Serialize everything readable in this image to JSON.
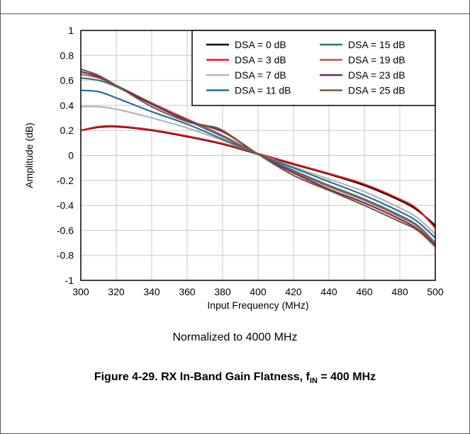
{
  "chart_data": {
    "type": "line",
    "xlabel": "Input Frequency (MHz)",
    "ylabel": "Amplitude (dB)",
    "xlim": [
      300,
      500
    ],
    "ylim": [
      -1,
      1
    ],
    "x_ticks": [
      "300",
      "320",
      "340",
      "360",
      "380",
      "400",
      "420",
      "440",
      "460",
      "480",
      "500"
    ],
    "y_ticks": [
      "1",
      "0.8",
      "0.6",
      "0.4",
      "0.2",
      "0",
      "-0.2",
      "-0.4",
      "-0.6",
      "-0.8",
      "-1"
    ],
    "grid": true,
    "legend_position": "top-right",
    "series": [
      {
        "name": "DSA = 0 dB",
        "color": "#000000",
        "points": [
          [
            300,
            0.2
          ],
          [
            310,
            0.225
          ],
          [
            320,
            0.23
          ],
          [
            340,
            0.2
          ],
          [
            360,
            0.15
          ],
          [
            380,
            0.09
          ],
          [
            400,
            0.01
          ],
          [
            420,
            -0.07
          ],
          [
            440,
            -0.15
          ],
          [
            460,
            -0.24
          ],
          [
            480,
            -0.36
          ],
          [
            490,
            -0.44
          ],
          [
            500,
            -0.56
          ]
        ]
      },
      {
        "name": "DSA = 3 dB",
        "color": "#e8191c",
        "points": [
          [
            300,
            0.2
          ],
          [
            310,
            0.23
          ],
          [
            320,
            0.235
          ],
          [
            340,
            0.205
          ],
          [
            360,
            0.155
          ],
          [
            380,
            0.095
          ],
          [
            400,
            0.015
          ],
          [
            420,
            -0.065
          ],
          [
            440,
            -0.145
          ],
          [
            460,
            -0.23
          ],
          [
            480,
            -0.35
          ],
          [
            490,
            -0.43
          ],
          [
            500,
            -0.58
          ]
        ]
      },
      {
        "name": "DSA = 7 dB",
        "color": "#b4b4b4",
        "points": [
          [
            300,
            0.39
          ],
          [
            310,
            0.39
          ],
          [
            320,
            0.37
          ],
          [
            340,
            0.3
          ],
          [
            360,
            0.22
          ],
          [
            380,
            0.12
          ],
          [
            400,
            0.01
          ],
          [
            420,
            -0.09
          ],
          [
            440,
            -0.19
          ],
          [
            460,
            -0.29
          ],
          [
            480,
            -0.42
          ],
          [
            490,
            -0.5
          ],
          [
            500,
            -0.63
          ]
        ]
      },
      {
        "name": "DSA = 11 dB",
        "color": "#2a6d9c",
        "points": [
          [
            300,
            0.52
          ],
          [
            310,
            0.51
          ],
          [
            320,
            0.46
          ],
          [
            340,
            0.35
          ],
          [
            360,
            0.25
          ],
          [
            380,
            0.13
          ],
          [
            400,
            0.01
          ],
          [
            420,
            -0.1
          ],
          [
            440,
            -0.21
          ],
          [
            460,
            -0.32
          ],
          [
            480,
            -0.45
          ],
          [
            490,
            -0.53
          ],
          [
            500,
            -0.66
          ]
        ]
      },
      {
        "name": "DSA = 15 dB",
        "color": "#2e7d5e",
        "points": [
          [
            300,
            0.62
          ],
          [
            310,
            0.6
          ],
          [
            320,
            0.55
          ],
          [
            340,
            0.41
          ],
          [
            360,
            0.28
          ],
          [
            380,
            0.15
          ],
          [
            400,
            0.01
          ],
          [
            420,
            -0.12
          ],
          [
            440,
            -0.24
          ],
          [
            460,
            -0.35
          ],
          [
            480,
            -0.48
          ],
          [
            490,
            -0.56
          ],
          [
            500,
            -0.7
          ]
        ]
      },
      {
        "name": "DSA = 19 dB",
        "color": "#c0504d",
        "points": [
          [
            300,
            0.65
          ],
          [
            310,
            0.62
          ],
          [
            320,
            0.56
          ],
          [
            340,
            0.42
          ],
          [
            360,
            0.29
          ],
          [
            380,
            0.16
          ],
          [
            400,
            0.01
          ],
          [
            420,
            -0.13
          ],
          [
            440,
            -0.25
          ],
          [
            460,
            -0.36
          ],
          [
            480,
            -0.49
          ],
          [
            490,
            -0.57
          ],
          [
            500,
            -0.71
          ]
        ]
      },
      {
        "name": "DSA = 23 dB",
        "color": "#5b2c6f",
        "points": [
          [
            300,
            0.67
          ],
          [
            310,
            0.63
          ],
          [
            320,
            0.56
          ],
          [
            340,
            0.41
          ],
          [
            360,
            0.28
          ],
          [
            380,
            0.19
          ],
          [
            400,
            0.01
          ],
          [
            420,
            -0.14
          ],
          [
            440,
            -0.27
          ],
          [
            460,
            -0.38
          ],
          [
            480,
            -0.51
          ],
          [
            490,
            -0.59
          ],
          [
            500,
            -0.72
          ]
        ]
      },
      {
        "name": "DSA = 25 dB",
        "color": "#7a5a3a",
        "points": [
          [
            300,
            0.69
          ],
          [
            310,
            0.64
          ],
          [
            320,
            0.56
          ],
          [
            340,
            0.39
          ],
          [
            360,
            0.27
          ],
          [
            370,
            0.24
          ],
          [
            380,
            0.2
          ],
          [
            400,
            0.01
          ],
          [
            420,
            -0.16
          ],
          [
            440,
            -0.28
          ],
          [
            460,
            -0.4
          ],
          [
            480,
            -0.53
          ],
          [
            490,
            -0.6
          ],
          [
            500,
            -0.73
          ]
        ]
      }
    ]
  },
  "subtitle": "Normalized to 4000 MHz",
  "caption": {
    "prefix": "Figure 4-29. RX In-Band Gain Flatness, f",
    "sub": "IN",
    "suffix": " = 400 MHz"
  }
}
